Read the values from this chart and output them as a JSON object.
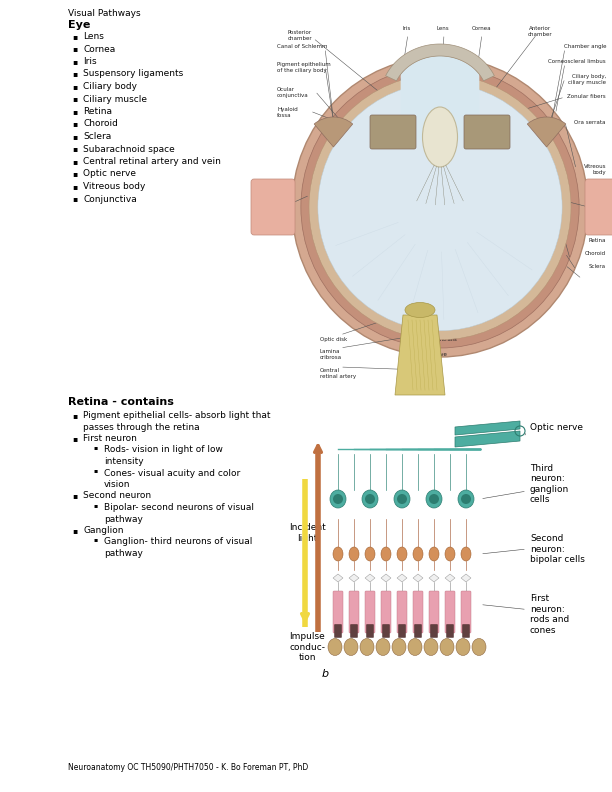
{
  "title": "Visual Pathways",
  "bg_color": "#ffffff",
  "text_color": "#000000",
  "font_family": "DejaVu Sans",
  "section1_header": "Eye",
  "section1_items": [
    "Lens",
    "Cornea",
    "Iris",
    "Suspensory ligaments",
    "Ciliary body",
    "Ciliary muscle",
    "Retina",
    "Choroid",
    "Sclera",
    "Subarachnoid space",
    "Central retinal artery and vein",
    "Optic nerve",
    "Vitreous body",
    "Conjunctiva"
  ],
  "section2_header": "Retina - contains",
  "section2_items": [
    {
      "level": 1,
      "text": "Pigment epithelial cells- absorb light that\npasses through the retina"
    },
    {
      "level": 1,
      "text": "First neuron"
    },
    {
      "level": 2,
      "text": "Rods- vision in light of low\nintensity"
    },
    {
      "level": 2,
      "text": "Cones- visual acuity and color\nvision"
    },
    {
      "level": 1,
      "text": "Second neuron"
    },
    {
      "level": 2,
      "text": "Bipolar- second neurons of visual\npathway"
    },
    {
      "level": 1,
      "text": "Ganglion"
    },
    {
      "level": 2,
      "text": "Ganglion- third neurons of visual\npathway"
    }
  ],
  "footer": "Neuroanatomy OC TH5090/PHTH7050 - K. Bo Foreman PT, PhD",
  "title_fontsize": 6.5,
  "header_fontsize": 8,
  "body_fontsize": 6.5,
  "footer_fontsize": 5.5,
  "small_label_fontsize": 4.0,
  "diagram_label_fontsize": 6.5
}
